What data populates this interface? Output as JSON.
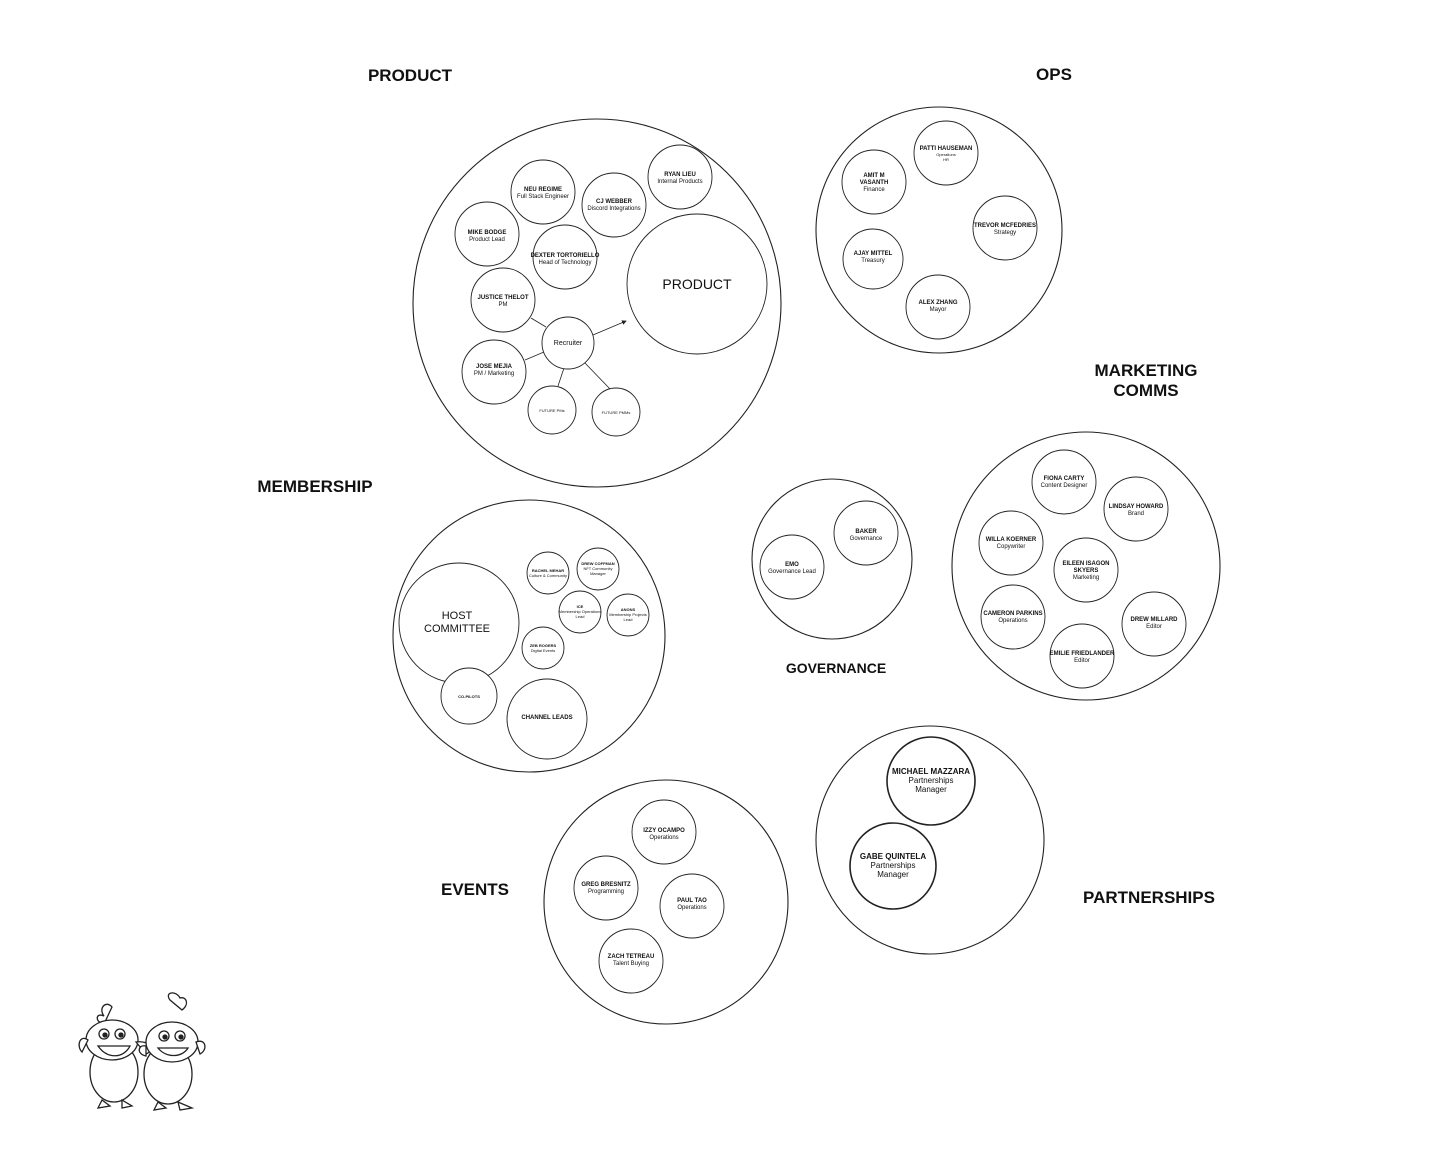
{
  "sections": {
    "product": "PRODUCT",
    "ops": "OPS",
    "marketing_1": "MARKETING",
    "marketing_2": "COMMS",
    "membership": "MEMBERSHIP",
    "governance": "GOVERNANCE",
    "events": "EVENTS",
    "partnerships": "PARTNERSHIPS"
  },
  "product": {
    "big": "PRODUCT",
    "recruiter": "Recruiter",
    "future_pms": "FUTURE PMs",
    "future_pmms": "FUTURE PMMs",
    "members": [
      {
        "name": "RYAN LIEU",
        "role": "Internal Products"
      },
      {
        "name": "NEU REGIME",
        "role": "Full Stack Engineer"
      },
      {
        "name": "CJ WEBBER",
        "role": "Discord Integrations"
      },
      {
        "name": "MIKE BODGE",
        "role": "Product Lead"
      },
      {
        "name": "DEXTER TORTORIELLO",
        "role": "Head of Technology"
      },
      {
        "name": "JUSTICE THELOT",
        "role": "PM"
      },
      {
        "name": "JOSE MEJIA",
        "role": "PM / Marketing"
      }
    ]
  },
  "ops": {
    "members": [
      {
        "name": "PATTI HAUSEMAN",
        "role": "Operations",
        "role2": "HR"
      },
      {
        "name": "AMIT M",
        "name2": "VASANTH",
        "role": "Finance"
      },
      {
        "name": "TREVOR MCFEDRIES",
        "role": "Strategy"
      },
      {
        "name": "AJAY MITTEL",
        "role": "Treasury"
      },
      {
        "name": "ALEX ZHANG",
        "role": "Mayor"
      }
    ]
  },
  "marketing": {
    "members": [
      {
        "name": "FIONA CARTY",
        "role": "Content Designer"
      },
      {
        "name": "LINDSAY HOWARD",
        "role": "Brand"
      },
      {
        "name": "WILLA KOERNER",
        "role": "Copywriter"
      },
      {
        "name": "EILEEN ISAGON",
        "name2": "SKYERS",
        "role": "Marketing"
      },
      {
        "name": "CAMERON PARKINS",
        "role": "Operations"
      },
      {
        "name": "DREW MILLARD",
        "role": "Editor"
      },
      {
        "name": "EMILIE FRIEDLANDER",
        "role": "Editor"
      }
    ]
  },
  "membership": {
    "host_1": "HOST",
    "host_2": "COMMITTEE",
    "copilots": "CO-PILOTS",
    "channel_leads": "CHANNEL LEADS",
    "members": [
      {
        "name": "RACHEL MEHAR",
        "role": "Culture & Community"
      },
      {
        "name": "DREW COFFMAN",
        "role": "NFT Community",
        "role2": "Manager"
      },
      {
        "name": "ICE",
        "role": "Membership Operations",
        "role2": "Lead"
      },
      {
        "name": "ANONS",
        "role": "Membership Projects",
        "role2": "Lead"
      },
      {
        "name": "ZEB ROGERS",
        "role": "Digital Events"
      }
    ]
  },
  "governance": {
    "members": [
      {
        "name": "BAKER",
        "role": "Governance"
      },
      {
        "name": "EMO",
        "role": "Governance Lead"
      }
    ]
  },
  "events": {
    "members": [
      {
        "name": "IZZY OCAMPO",
        "role": "Operations"
      },
      {
        "name": "GREG BRESNITZ",
        "role": "Programming"
      },
      {
        "name": "PAUL TAO",
        "role": "Operations"
      },
      {
        "name": "ZACH TETREAU",
        "role": "Talent Buying"
      }
    ]
  },
  "partnerships": {
    "members": [
      {
        "name": "MICHAEL MAZZARA",
        "role": "Partnerships",
        "role2": "Manager"
      },
      {
        "name": "GABE QUINTELA",
        "role": "Partnerships",
        "role2": "Manager"
      }
    ]
  },
  "mascot_icon": "twin-chickens-mascot"
}
